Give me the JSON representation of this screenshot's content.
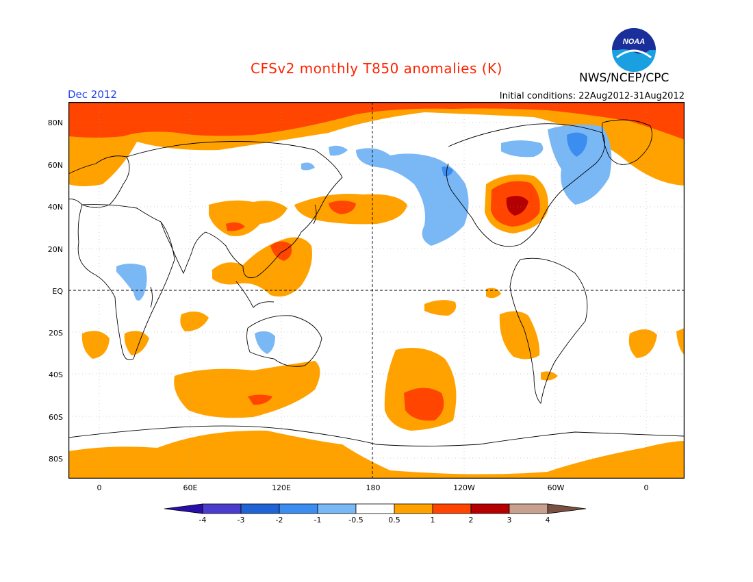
{
  "title": "CFSv2 monthly T850 anomalies (K)",
  "agency": "NWS/NCEP/CPC",
  "logo_text": "NOAA",
  "valid_month": "Dec 2012",
  "initial_conditions": "Initial conditions: 22Aug2012-31Aug2012",
  "lat_labels": [
    "80N",
    "60N",
    "40N",
    "20N",
    "EQ",
    "20S",
    "40S",
    "60S",
    "80S"
  ],
  "lon_labels": [
    "0",
    "60E",
    "120E",
    "180",
    "120W",
    "60W",
    "0"
  ],
  "colorbar": {
    "labels": [
      "-4",
      "-3",
      "-2",
      "-1",
      "-0.5",
      "0.5",
      "1",
      "2",
      "3",
      "4"
    ],
    "colors": [
      "#2a0ea8",
      "#4a3ccc",
      "#1f63d6",
      "#3c8df0",
      "#7ab8f5",
      "#ffffff",
      "#ffa200",
      "#ff4500",
      "#b40000",
      "#c8a090",
      "#7a5040"
    ]
  }
}
